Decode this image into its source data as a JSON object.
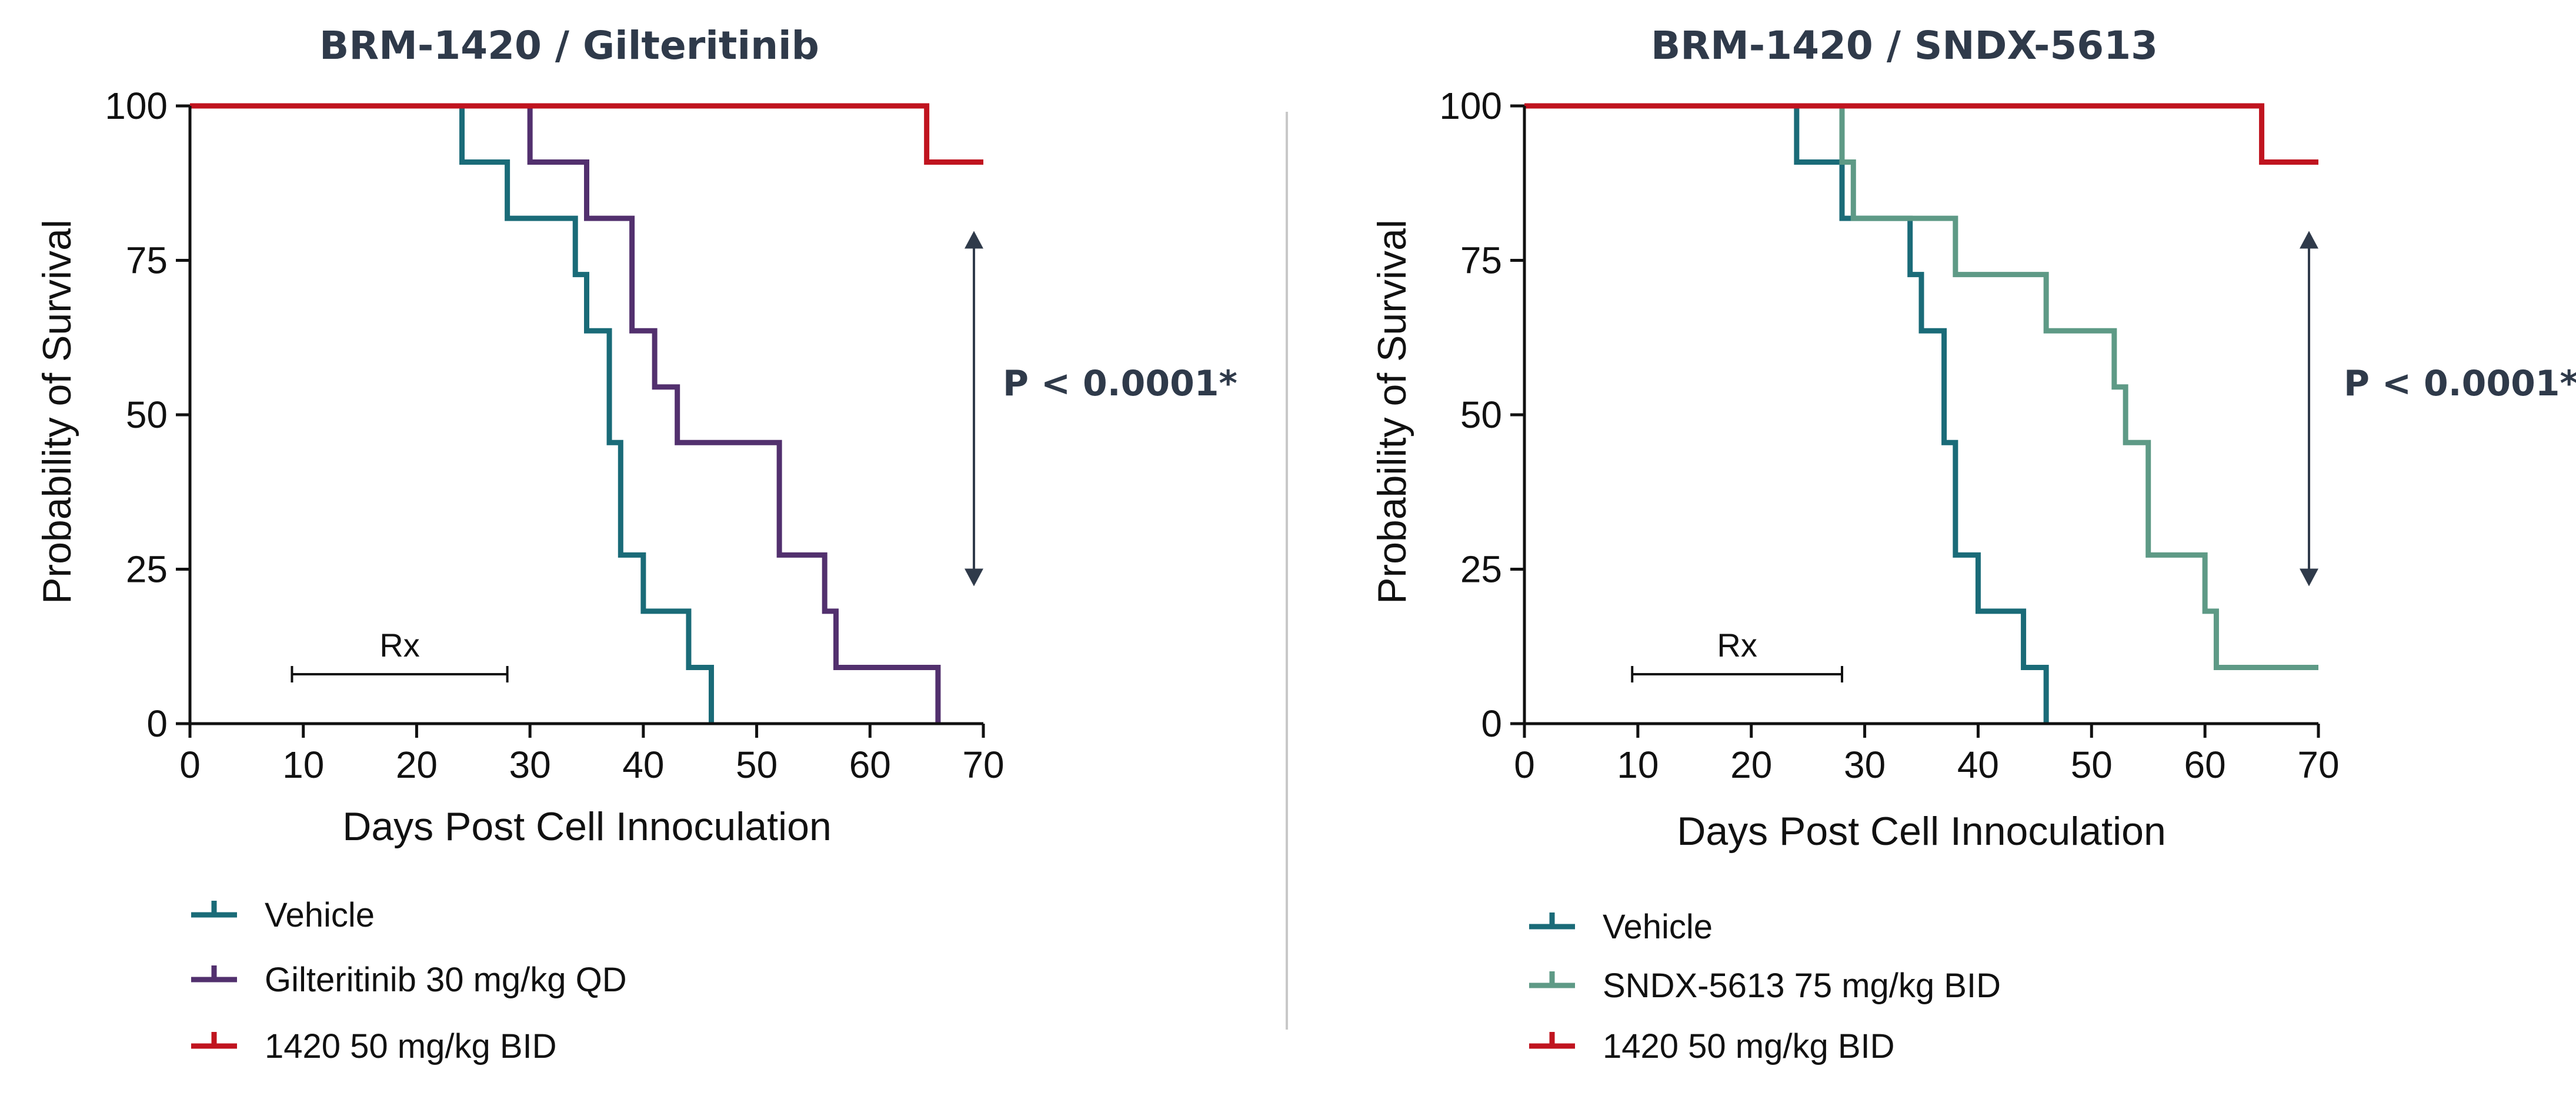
{
  "chart_data": [
    {
      "type": "line",
      "step": true,
      "title": "BRM-1420 / Gilteritinib",
      "xlabel": "Days Post Cell Innoculation",
      "ylabel": "Probability of Survival",
      "xlim": [
        0,
        70
      ],
      "ylim": [
        0,
        100
      ],
      "xticks": [
        "0",
        "10",
        "20",
        "30",
        "40",
        "50",
        "60",
        "70"
      ],
      "yticks": [
        "0",
        "25",
        "50",
        "75",
        "100"
      ],
      "annotation": "P < 0.0001*",
      "rx_label": "Rx",
      "rx_range": [
        9,
        28
      ],
      "pvalue_arrow_range": [
        23,
        79
      ],
      "series": [
        {
          "name": "Vehicle",
          "color": "#1a6b78",
          "x": [
            0,
            24,
            28,
            34,
            35,
            37,
            38,
            40,
            44,
            46
          ],
          "y": [
            100,
            90.9,
            81.8,
            72.7,
            63.6,
            45.5,
            27.3,
            18.2,
            9.1,
            0
          ]
        },
        {
          "name": "Gilteritinib 30 mg/kg QD",
          "color": "#52306e",
          "x": [
            0,
            30,
            35,
            39,
            41,
            43,
            52,
            56,
            57,
            66
          ],
          "y": [
            100,
            90.9,
            81.8,
            63.6,
            54.5,
            45.5,
            27.3,
            18.2,
            9.1,
            0
          ]
        },
        {
          "name": "1420 50 mg/kg BID",
          "color": "#c0141f",
          "x": [
            0,
            65,
            70
          ],
          "y": [
            100,
            90.9,
            90.9
          ]
        }
      ]
    },
    {
      "type": "line",
      "step": true,
      "title": "BRM-1420 / SNDX-5613",
      "xlabel": "Days Post Cell Innoculation",
      "ylabel": "Probability of Survival",
      "xlim": [
        0,
        70
      ],
      "ylim": [
        0,
        100
      ],
      "xticks": [
        "0",
        "10",
        "20",
        "30",
        "40",
        "50",
        "60",
        "70"
      ],
      "yticks": [
        "0",
        "25",
        "50",
        "75",
        "100"
      ],
      "annotation": "P < 0.0001*",
      "rx_label": "Rx",
      "rx_range": [
        9.5,
        28
      ],
      "pvalue_arrow_range": [
        23,
        79
      ],
      "series": [
        {
          "name": "Vehicle",
          "color": "#1a6b78",
          "x": [
            0,
            24,
            28,
            34,
            35,
            37,
            38,
            40,
            44,
            46
          ],
          "y": [
            100,
            90.9,
            81.8,
            72.7,
            63.6,
            45.5,
            27.3,
            18.2,
            9.1,
            0
          ]
        },
        {
          "name": "SNDX-5613 75 mg/kg BID",
          "color": "#5e9a86",
          "x": [
            0,
            28,
            29,
            38,
            46,
            52,
            53,
            55,
            60,
            61,
            70
          ],
          "y": [
            100,
            90.9,
            81.8,
            72.7,
            63.6,
            54.5,
            45.5,
            27.3,
            18.2,
            9.1,
            9.1
          ]
        },
        {
          "name": "1420 50 mg/kg BID",
          "color": "#c0141f",
          "x": [
            0,
            65,
            70
          ],
          "y": [
            100,
            90.9,
            90.9
          ]
        }
      ]
    }
  ]
}
